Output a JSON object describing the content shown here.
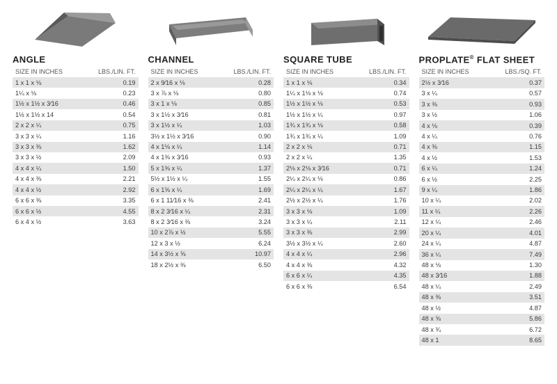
{
  "layout": {
    "background": "#ffffff",
    "stripe_color": "#e4e4e4",
    "text_color": "#333333",
    "title_fontsize": 13,
    "body_fontsize": 9.2
  },
  "shapes": {
    "angle_fill": "#7a7a7a",
    "angle_dark": "#5a5a5a",
    "channel_fill": "#7d7d7d",
    "channel_dark": "#5e5e5e",
    "tube_fill": "#6e6e6e",
    "tube_dark": "#505050",
    "sheet_fill": "#6a6a6a",
    "sheet_dark": "#4d4d4d"
  },
  "columns": [
    {
      "title": "ANGLE",
      "size_header": "SIZE IN INCHES",
      "wt_header": "LBS./LIN. FT.",
      "rows": [
        {
          "size": "1 x 1 x ⅛",
          "wt": "0.19"
        },
        {
          "size": "1¼ x ⅛",
          "wt": "0.23"
        },
        {
          "size": "1½ x 1½ x 3⁄16",
          "wt": "0.46"
        },
        {
          "size": "1½ x 1½ x 14",
          "wt": "0.54"
        },
        {
          "size": "2 x 2 x ¼",
          "wt": "0.75"
        },
        {
          "size": "3 x 3 x ¼",
          "wt": "1.16"
        },
        {
          "size": "3 x 3 x ⅜",
          "wt": "1.62"
        },
        {
          "size": "3 x 3 x ½",
          "wt": "2.09"
        },
        {
          "size": "4 x 4 x ¼",
          "wt": "1.50"
        },
        {
          "size": "4 x 4 x ⅜",
          "wt": "2.21"
        },
        {
          "size": "4 x 4 x ½",
          "wt": "2.92"
        },
        {
          "size": "6 x 6 x ⅜",
          "wt": "3.35"
        },
        {
          "size": "6 x 6 x ½",
          "wt": "4.55"
        },
        {
          "size": "6 x 4 x ½",
          "wt": "3.63"
        }
      ]
    },
    {
      "title": "CHANNEL",
      "size_header": "SIZE IN INCHES",
      "wt_header": "LBS./LIN. FT.",
      "rows": [
        {
          "size": "2 x 9⁄16 x ⅛",
          "wt": "0.28"
        },
        {
          "size": "3 x ⅞ x ⅛",
          "wt": "0.80"
        },
        {
          "size": "3 x 1 x ⅛",
          "wt": "0.85"
        },
        {
          "size": "3 x 1½ x 3⁄16",
          "wt": "0.81"
        },
        {
          "size": "3 x 1½ x ¼",
          "wt": "1.03"
        },
        {
          "size": "3½ x 1½ x 3⁄16",
          "wt": "0.90"
        },
        {
          "size": "4 x 1⅛ x ¼",
          "wt": "1.14"
        },
        {
          "size": "4 x 1⅜ x 3⁄16",
          "wt": "0.93"
        },
        {
          "size": "5 x 1⅜ x ¼",
          "wt": "1.37"
        },
        {
          "size": "5½ x 1½ x ¼",
          "wt": "1.55"
        },
        {
          "size": "6 x 1⅝ x ¼",
          "wt": "1.69"
        },
        {
          "size": "6 x 1 11⁄16 x ⅜",
          "wt": "2.41"
        },
        {
          "size": "8 x 2 3⁄16 x ¼",
          "wt": "2.31"
        },
        {
          "size": "8 x 2 3⁄16 x ⅜",
          "wt": "3.24"
        },
        {
          "size": "10 x 2⅞ x ½",
          "wt": "5.55"
        },
        {
          "size": "12 x 3 x ½",
          "wt": "6.24"
        },
        {
          "size": "14 x 3½ x ⅝",
          "wt": "10.97"
        },
        {
          "size": "18 x 2½ x ⅜",
          "wt": "6.50"
        }
      ]
    },
    {
      "title": "SQUARE TUBE",
      "size_header": "SIZE IN INCHES",
      "wt_header": "LBS./LIN. FT.",
      "rows": [
        {
          "size": "1 x 1 x ⅛",
          "wt": "0.34"
        },
        {
          "size": "1¼ x 1⅛ x ⅛",
          "wt": "0.74"
        },
        {
          "size": "1½ x 1½ x ⅛",
          "wt": "0.53"
        },
        {
          "size": "1½ x 1½ x ¼",
          "wt": "0.97"
        },
        {
          "size": "1¾ x 1¾ x ⅛",
          "wt": "0.58"
        },
        {
          "size": "1¾ x 1¾ x ¼",
          "wt": "1.09"
        },
        {
          "size": "2 x 2 x ⅛",
          "wt": "0.71"
        },
        {
          "size": "2 x 2 x ¼",
          "wt": "1.35"
        },
        {
          "size": "2⅛ x 2⅛ x 3⁄16",
          "wt": "0.71"
        },
        {
          "size": "2¼ x 2¼ x ⅛",
          "wt": "0.86"
        },
        {
          "size": "2¼ x 2¼ x ¼",
          "wt": "1.67"
        },
        {
          "size": "2½ x 2½ x ¼",
          "wt": "1.76"
        },
        {
          "size": "3 x 3 x ⅛",
          "wt": "1.09"
        },
        {
          "size": "3 x 3 x ¼",
          "wt": "2.11"
        },
        {
          "size": "3 x 3 x ⅜",
          "wt": "2.99"
        },
        {
          "size": "3½ x 3½ x ¼",
          "wt": "2.60"
        },
        {
          "size": "4 x 4 x ¼",
          "wt": "2.96"
        },
        {
          "size": "4 x 4 x ⅜",
          "wt": "4.32"
        },
        {
          "size": "6 x 6 x ¼",
          "wt": "4.35"
        },
        {
          "size": "6 x 6 x ⅜",
          "wt": "6.54"
        }
      ]
    },
    {
      "title_html": "PROPLATE<sup>®</sup> FLAT SHEET",
      "title": "PROPLATE FLAT SHEET",
      "size_header": "SIZE IN INCHES",
      "wt_header": "LBS./SQ. FT.",
      "rows": [
        {
          "size": "2½ x 3⁄16",
          "wt": "0.37"
        },
        {
          "size": "3 x ¼",
          "wt": "0.57"
        },
        {
          "size": "3 x ⅜",
          "wt": "0.93"
        },
        {
          "size": "3 x ½",
          "wt": "1.06"
        },
        {
          "size": "4 x ⅛",
          "wt": "0.39"
        },
        {
          "size": "4 x ¼",
          "wt": "0.76"
        },
        {
          "size": "4 x ⅜",
          "wt": "1.15"
        },
        {
          "size": "4 x ½",
          "wt": "1.53"
        },
        {
          "size": "6 x ¼",
          "wt": "1.24"
        },
        {
          "size": "6 x ½",
          "wt": "2.25"
        },
        {
          "size": "9 x ¼",
          "wt": "1.86"
        },
        {
          "size": "10 x ¼",
          "wt": "2.02"
        },
        {
          "size": "11 x ¼",
          "wt": "2.26"
        },
        {
          "size": "12 x ¼",
          "wt": "2.46"
        },
        {
          "size": "20 x ¼",
          "wt": "4.01"
        },
        {
          "size": "24 x ¼",
          "wt": "4.87"
        },
        {
          "size": "36 x ¼",
          "wt": "7.49"
        },
        {
          "size": "48 x ⅛",
          "wt": "1.30"
        },
        {
          "size": "48 x 3⁄16",
          "wt": "1.88"
        },
        {
          "size": "48 x ¼",
          "wt": "2.49"
        },
        {
          "size": "48 x ⅜",
          "wt": "3.51"
        },
        {
          "size": "48 x ½",
          "wt": "4.87"
        },
        {
          "size": "48 x ⅝",
          "wt": "5.86"
        },
        {
          "size": "48 x ¾",
          "wt": "6.72"
        },
        {
          "size": "48 x 1",
          "wt": "8.65"
        }
      ]
    }
  ]
}
